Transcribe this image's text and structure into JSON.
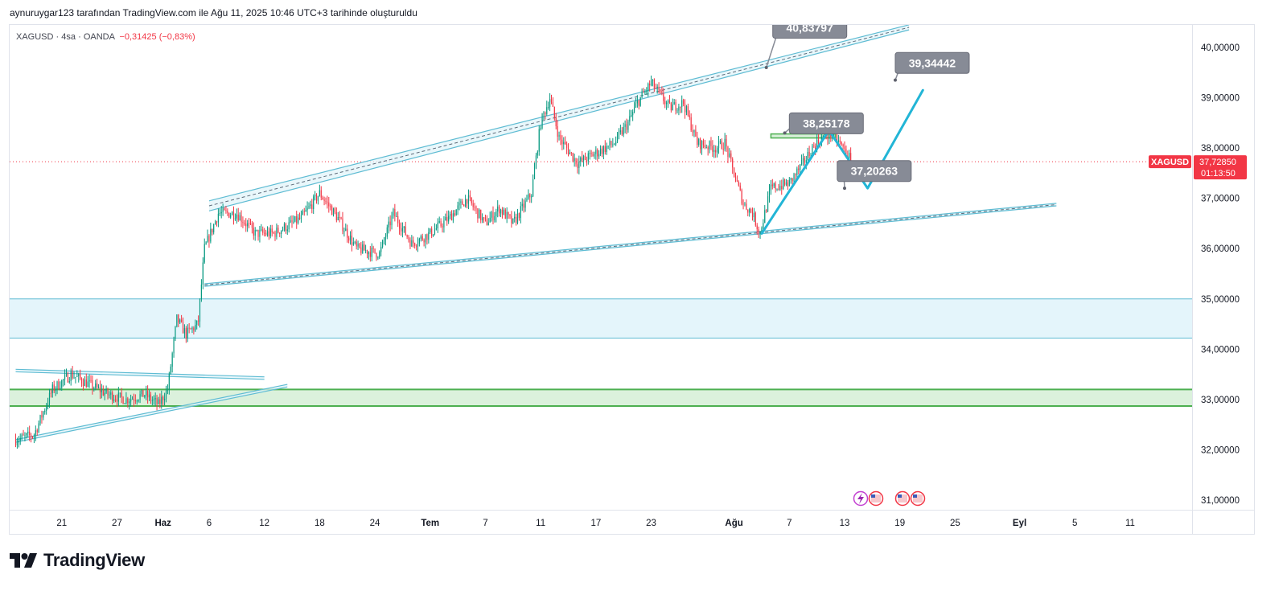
{
  "header": {
    "attribution": "aynuruygar123 tarafından TradingView.com ile Ağu 11, 2025 10:46 UTC+3 tarihinde oluşturuldu"
  },
  "symbol": {
    "name": "XAGUSD",
    "sep1": "·",
    "interval": "4sa",
    "sep2": "·",
    "source": "OANDA",
    "change": "−0,31425 (−0,83%)"
  },
  "price_tag": {
    "symbol": "XAGUSD",
    "price": "37,72850",
    "countdown": "01:13:50",
    "value": 37.7285
  },
  "brand": {
    "name": "TradingView"
  },
  "colors": {
    "up": "#089981",
    "down": "#f23645",
    "channel": "#5fbcd3",
    "zone_blue_fill": "#dff3fa",
    "zone_green_fill": "#d7efd8",
    "zone_green_line": "#4caf50",
    "projection": "#22b5d6",
    "callout": "#878b96"
  },
  "chart_data": {
    "type": "candlestick",
    "y_range": [
      30.85,
      40.45
    ],
    "y_ticks": [
      {
        "v": 40,
        "label": "40,00000"
      },
      {
        "v": 39,
        "label": "39,00000"
      },
      {
        "v": 38,
        "label": "38,00000"
      },
      {
        "v": 37,
        "label": "37,00000"
      },
      {
        "v": 36,
        "label": "36,00000"
      },
      {
        "v": 35,
        "label": "35,00000"
      },
      {
        "v": 34,
        "label": "34,00000"
      },
      {
        "v": 33,
        "label": "33,00000"
      },
      {
        "v": 32,
        "label": "32,00000"
      },
      {
        "v": 31,
        "label": "31,00000"
      }
    ],
    "x_ticks": [
      {
        "d": 5,
        "label": "21",
        "bold": false
      },
      {
        "d": 11,
        "label": "27",
        "bold": false
      },
      {
        "d": 16,
        "label": "Haz",
        "bold": true
      },
      {
        "d": 21,
        "label": "6",
        "bold": false
      },
      {
        "d": 27,
        "label": "12",
        "bold": false
      },
      {
        "d": 33,
        "label": "18",
        "bold": false
      },
      {
        "d": 39,
        "label": "24",
        "bold": false
      },
      {
        "d": 45,
        "label": "Tem",
        "bold": true
      },
      {
        "d": 51,
        "label": "7",
        "bold": false
      },
      {
        "d": 57,
        "label": "11",
        "bold": false
      },
      {
        "d": 63,
        "label": "17",
        "bold": false
      },
      {
        "d": 69,
        "label": "23",
        "bold": false
      },
      {
        "d": 78,
        "label": "Ağu",
        "bold": true
      },
      {
        "d": 84,
        "label": "7",
        "bold": false
      },
      {
        "d": 90,
        "label": "13",
        "bold": false
      },
      {
        "d": 96,
        "label": "19",
        "bold": false
      },
      {
        "d": 102,
        "label": "25",
        "bold": false
      },
      {
        "d": 109,
        "label": "Eyl",
        "bold": true
      },
      {
        "d": 115,
        "label": "5",
        "bold": false
      },
      {
        "d": 121,
        "label": "11",
        "bold": false
      }
    ],
    "x_origin_day": 0,
    "bars_per_day": 6,
    "close_path": [
      [
        0,
        32.2
      ],
      [
        2,
        32.3
      ],
      [
        4,
        33.2
      ],
      [
        6,
        33.5
      ],
      [
        8,
        33.3
      ],
      [
        10,
        33.1
      ],
      [
        12,
        33.0
      ],
      [
        14,
        33.1
      ],
      [
        15.5,
        32.9
      ],
      [
        16.5,
        33.2
      ],
      [
        17.5,
        34.6
      ],
      [
        18.5,
        34.3
      ],
      [
        19.8,
        34.5
      ],
      [
        20.5,
        36.0
      ],
      [
        22,
        36.7
      ],
      [
        24,
        36.7
      ],
      [
        26,
        36.3
      ],
      [
        28,
        36.3
      ],
      [
        31,
        36.6
      ],
      [
        33,
        37.1
      ],
      [
        35,
        36.6
      ],
      [
        37,
        36.0
      ],
      [
        39.5,
        35.9
      ],
      [
        41,
        36.7
      ],
      [
        43,
        36.1
      ],
      [
        45,
        36.3
      ],
      [
        47,
        36.6
      ],
      [
        49,
        37.0
      ],
      [
        51,
        36.5
      ],
      [
        52.5,
        36.8
      ],
      [
        54,
        36.5
      ],
      [
        56,
        37.1
      ],
      [
        57,
        38.5
      ],
      [
        58,
        39.0
      ],
      [
        59,
        38.2
      ],
      [
        61,
        37.7
      ],
      [
        63,
        37.9
      ],
      [
        65,
        38.1
      ],
      [
        66.5,
        38.5
      ],
      [
        67.5,
        38.9
      ],
      [
        69,
        39.3
      ],
      [
        71,
        38.8
      ],
      [
        72.5,
        38.9
      ],
      [
        74,
        38.1
      ],
      [
        76,
        38.0
      ],
      [
        77,
        38.1
      ],
      [
        77.8,
        37.6
      ],
      [
        79,
        36.9
      ],
      [
        80,
        36.7
      ],
      [
        80.8,
        36.3
      ],
      [
        82,
        37.2
      ],
      [
        84,
        37.3
      ],
      [
        85.5,
        37.7
      ],
      [
        86.5,
        38.0
      ],
      [
        87.5,
        38.2
      ],
      [
        88.7,
        38.3
      ],
      [
        89.8,
        38.0
      ],
      [
        90.8,
        37.73
      ]
    ],
    "channels": [
      {
        "name": "",
        "upper": [
          [
            21,
            36.95
          ],
          [
            97,
            40.45
          ]
        ],
        "lower": [
          [
            21,
            36.75
          ],
          [
            97,
            40.35
          ]
        ],
        "mid_dashed": true
      },
      {
        "name": "",
        "upper": [
          [
            20.5,
            35.3
          ],
          [
            113,
            36.9
          ]
        ],
        "lower": [
          [
            20.5,
            35.25
          ],
          [
            113,
            36.85
          ]
        ],
        "mid_dashed": true
      },
      {
        "name": "",
        "upper": [
          [
            0,
            33.6
          ],
          [
            27,
            33.45
          ]
        ],
        "lower": [
          [
            0,
            33.55
          ],
          [
            27,
            33.4
          ]
        ],
        "mid_dashed": false
      },
      {
        "name": "",
        "upper": [
          [
            0,
            32.2
          ],
          [
            29.5,
            33.3
          ]
        ],
        "lower": [
          [
            0,
            32.15
          ],
          [
            29.5,
            33.25
          ]
        ],
        "mid_dashed": false
      }
    ],
    "zones": [
      {
        "type": "resistance",
        "top": 35.0,
        "bottom": 34.22,
        "color": "blue"
      },
      {
        "type": "support",
        "top": 33.2,
        "bottom": 32.87,
        "color": "green"
      }
    ],
    "mini_zone": {
      "d1": 82,
      "d2": 89,
      "top": 38.28,
      "bottom": 38.2
    },
    "projection": [
      [
        81,
        36.3
      ],
      [
        88.3,
        38.35
      ],
      [
        92.5,
        37.2
      ],
      [
        98.5,
        39.15
      ]
    ],
    "callouts": [
      {
        "label": "40,83797",
        "value": 40.84,
        "anchor": [
          81.5,
          39.6
        ],
        "box": [
          82.2,
          40.6
        ],
        "cut_off": true
      },
      {
        "label": "39,34442",
        "value": 39.34442,
        "anchor": [
          95.5,
          39.35
        ],
        "box": [
          95.5,
          39.9
        ]
      },
      {
        "label": "38,25178",
        "value": 38.25178,
        "anchor": [
          83.5,
          38.3
        ],
        "box": [
          84,
          38.7
        ]
      },
      {
        "label": "37,20263",
        "value": 37.20263,
        "anchor": [
          90,
          37.2
        ],
        "box": [
          89.2,
          37.75
        ]
      }
    ],
    "current_price": 37.7285
  }
}
